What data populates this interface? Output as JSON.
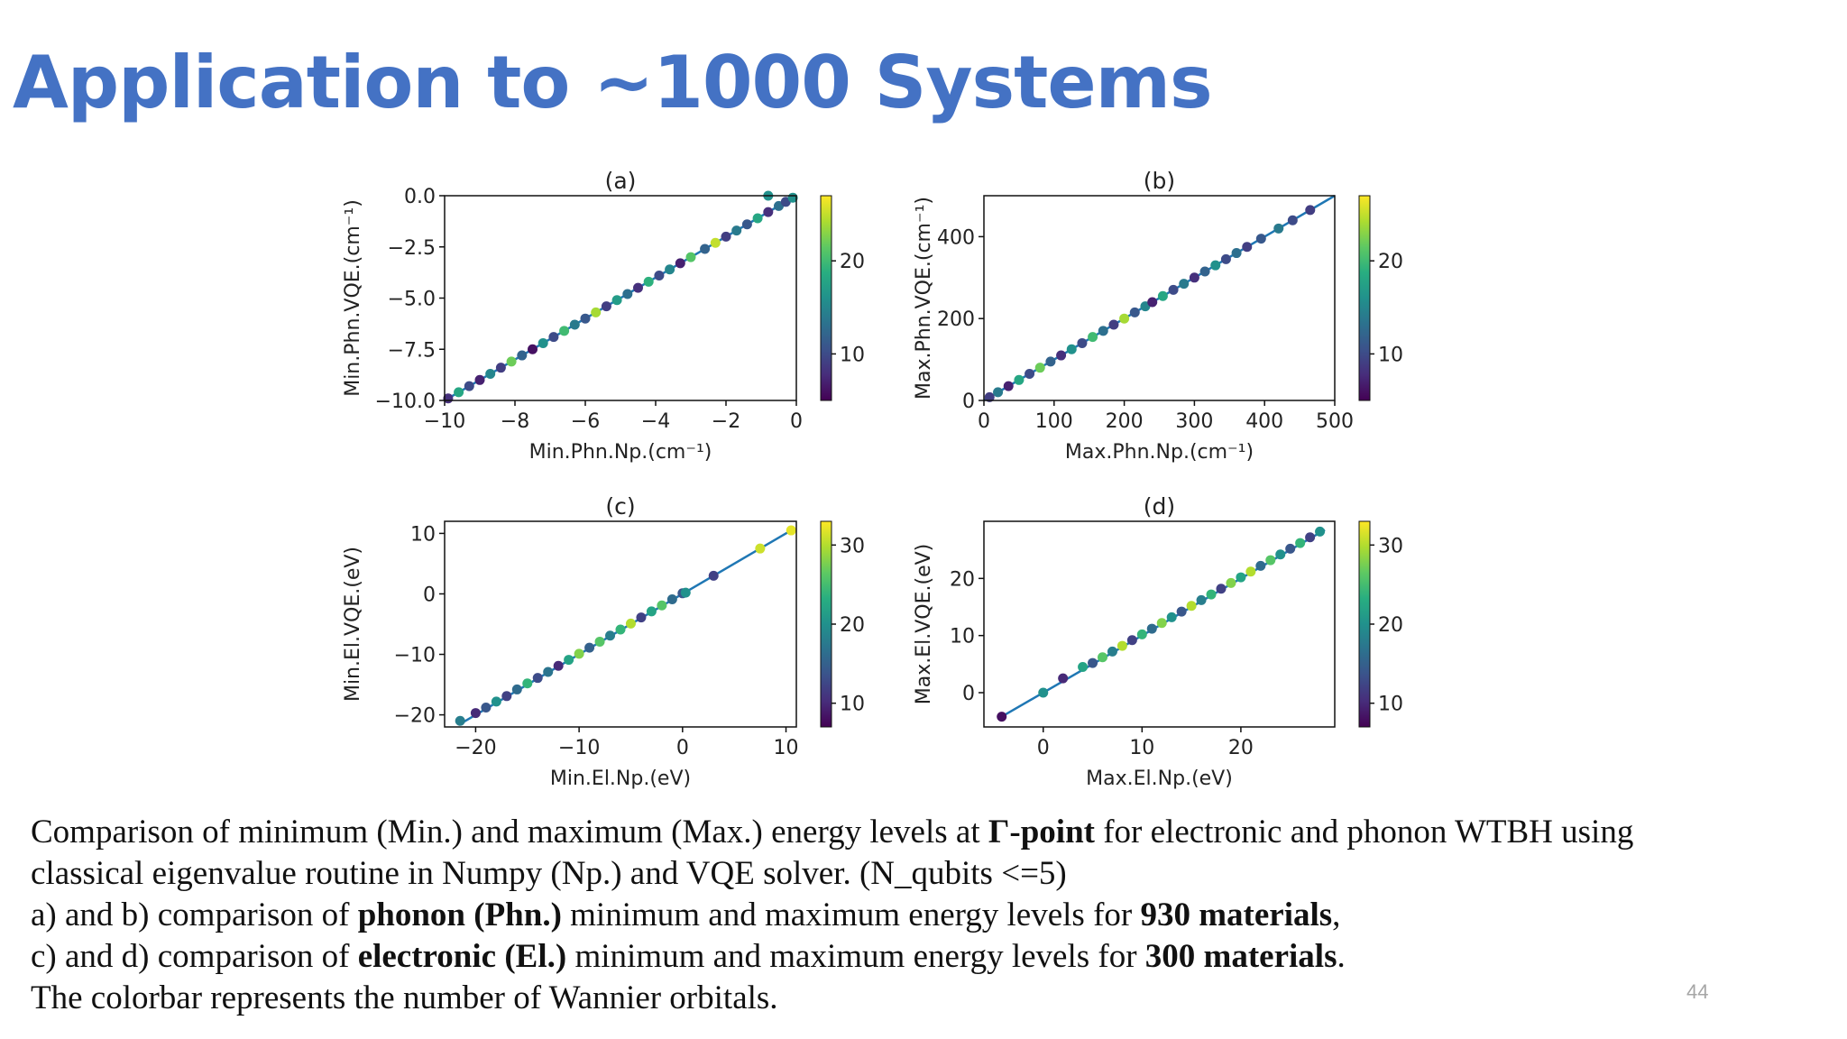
{
  "slide": {
    "title": "Application to ~1000 Systems",
    "page_number": "44",
    "caption": {
      "line1": [
        {
          "text": "Comparison of minimum (Min.) and maximum (Max.) energy levels at ",
          "bold": false
        },
        {
          "text": "Γ-point",
          "bold": true
        },
        {
          "text": " for electronic and phonon WTBH using",
          "bold": false
        }
      ],
      "line2": [
        {
          "text": "classical eigenvalue routine in Numpy (Np.) and VQE solver. (N_qubits <=5)",
          "bold": false
        }
      ],
      "line3": [
        {
          "text": "a)   and b) comparison of ",
          "bold": false
        },
        {
          "text": "phonon (Phn.)",
          "bold": true
        },
        {
          "text": " minimum and maximum energy levels for ",
          "bold": false
        },
        {
          "text": "930 materials",
          "bold": true
        },
        {
          "text": ",",
          "bold": false
        }
      ],
      "line4": [
        {
          "text": "c) and d) comparison of ",
          "bold": false
        },
        {
          "text": "electronic (El.)",
          "bold": true
        },
        {
          "text": " minimum and maximum energy levels for ",
          "bold": false
        },
        {
          "text": "300 materials",
          "bold": true
        },
        {
          "text": ".",
          "bold": false
        }
      ],
      "line5": [
        {
          "text": "The colorbar represents the number of Wannier orbitals.",
          "bold": false
        }
      ]
    }
  },
  "chart_data": [
    {
      "type": "scatter",
      "title": "(a)",
      "xlabel": "Min.Phn.Np.(cm⁻¹)",
      "ylabel": "Min.Phn.VQE.(cm⁻¹)",
      "xlim": [
        -10,
        0
      ],
      "ylim": [
        -10,
        0
      ],
      "xticks": [
        -10,
        -8,
        -6,
        -4,
        -2,
        0
      ],
      "xticklabels": [
        "−10",
        "−8",
        "−6",
        "−4",
        "−2",
        "0"
      ],
      "yticks": [
        0,
        -2.5,
        -5,
        -7.5,
        -10
      ],
      "yticklabels": [
        "0.0",
        "−2.5",
        "−5.0",
        "−7.5",
        "−10.0"
      ],
      "diagonal": [
        -10,
        0
      ],
      "colorbar": {
        "range": [
          5,
          27
        ],
        "ticks": [
          10,
          20
        ],
        "ticklabels": [
          "10",
          "20"
        ],
        "cmap": "viridis"
      },
      "points": [
        [
          -9.9,
          -9.9,
          8
        ],
        [
          -9.6,
          -9.6,
          18
        ],
        [
          -9.3,
          -9.3,
          10
        ],
        [
          -9.0,
          -9.0,
          7
        ],
        [
          -8.7,
          -8.7,
          15
        ],
        [
          -8.4,
          -8.4,
          9
        ],
        [
          -8.1,
          -8.1,
          22
        ],
        [
          -7.8,
          -7.8,
          12
        ],
        [
          -7.5,
          -7.5,
          6
        ],
        [
          -7.2,
          -7.2,
          16
        ],
        [
          -6.9,
          -6.9,
          10
        ],
        [
          -6.6,
          -6.6,
          20
        ],
        [
          -6.3,
          -6.3,
          14
        ],
        [
          -6.0,
          -6.0,
          11
        ],
        [
          -5.7,
          -5.7,
          24
        ],
        [
          -5.4,
          -5.4,
          9
        ],
        [
          -5.1,
          -5.1,
          17
        ],
        [
          -4.8,
          -4.8,
          13
        ],
        [
          -4.5,
          -4.5,
          8
        ],
        [
          -4.2,
          -4.2,
          19
        ],
        [
          -3.9,
          -3.9,
          10
        ],
        [
          -3.6,
          -3.6,
          15
        ],
        [
          -3.3,
          -3.3,
          7
        ],
        [
          -3.0,
          -3.0,
          21
        ],
        [
          -2.6,
          -2.6,
          12
        ],
        [
          -2.3,
          -2.3,
          25
        ],
        [
          -2.0,
          -2.0,
          9
        ],
        [
          -1.7,
          -1.7,
          14
        ],
        [
          -1.4,
          -1.4,
          11
        ],
        [
          -1.1,
          -1.1,
          18
        ],
        [
          -0.8,
          -0.8,
          8
        ],
        [
          -0.5,
          -0.5,
          13
        ],
        [
          -0.3,
          -0.3,
          10
        ],
        [
          -0.1,
          -0.1,
          16
        ],
        [
          -0.8,
          0.0,
          16
        ]
      ]
    },
    {
      "type": "scatter",
      "title": "(b)",
      "xlabel": "Max.Phn.Np.(cm⁻¹)",
      "ylabel": "Max.Phn.VQE.(cm⁻¹)",
      "xlim": [
        0,
        500
      ],
      "ylim": [
        0,
        500
      ],
      "xticks": [
        0,
        100,
        200,
        300,
        400,
        500
      ],
      "xticklabels": [
        "0",
        "100",
        "200",
        "300",
        "400",
        "500"
      ],
      "yticks": [
        0,
        200,
        400
      ],
      "yticklabels": [
        "0",
        "200",
        "400"
      ],
      "diagonal": [
        0,
        500
      ],
      "colorbar": {
        "range": [
          5,
          27
        ],
        "ticks": [
          10,
          20
        ],
        "ticklabels": [
          "10",
          "20"
        ],
        "cmap": "viridis"
      },
      "points": [
        [
          8,
          8,
          9
        ],
        [
          20,
          20,
          14
        ],
        [
          35,
          35,
          7
        ],
        [
          50,
          50,
          18
        ],
        [
          65,
          65,
          10
        ],
        [
          80,
          80,
          22
        ],
        [
          95,
          95,
          12
        ],
        [
          110,
          110,
          8
        ],
        [
          125,
          125,
          16
        ],
        [
          140,
          140,
          10
        ],
        [
          155,
          155,
          20
        ],
        [
          170,
          170,
          13
        ],
        [
          185,
          185,
          9
        ],
        [
          200,
          200,
          24
        ],
        [
          215,
          215,
          11
        ],
        [
          230,
          230,
          15
        ],
        [
          240,
          240,
          7
        ],
        [
          255,
          255,
          18
        ],
        [
          270,
          270,
          10
        ],
        [
          285,
          285,
          14
        ],
        [
          300,
          300,
          8
        ],
        [
          315,
          315,
          12
        ],
        [
          330,
          330,
          16
        ],
        [
          345,
          345,
          10
        ],
        [
          360,
          360,
          13
        ],
        [
          375,
          375,
          9
        ],
        [
          395,
          395,
          11
        ],
        [
          420,
          420,
          14
        ],
        [
          440,
          440,
          10
        ],
        [
          465,
          465,
          9
        ]
      ]
    },
    {
      "type": "scatter",
      "title": "(c)",
      "xlabel": "Min.El.Np.(eV)",
      "ylabel": "Min.El.VQE.(eV)",
      "xlim": [
        -23,
        11
      ],
      "ylim": [
        -22,
        12
      ],
      "xticks": [
        -20,
        -10,
        0,
        10
      ],
      "xticklabels": [
        "−20",
        "−10",
        "0",
        "10"
      ],
      "yticks": [
        10,
        0,
        -10,
        -20
      ],
      "yticklabels": [
        "10",
        "0",
        "−10",
        "−20"
      ],
      "diagonal": [
        -21.5,
        10.5
      ],
      "colorbar": {
        "range": [
          7,
          33
        ],
        "ticks": [
          10,
          20,
          30
        ],
        "ticklabels": [
          "10",
          "20",
          "30"
        ],
        "cmap": "viridis"
      },
      "points": [
        [
          -21.5,
          -21,
          18
        ],
        [
          -20,
          -19.7,
          10
        ],
        [
          -19,
          -18.8,
          14
        ],
        [
          -18,
          -17.8,
          20
        ],
        [
          -17,
          -16.9,
          12
        ],
        [
          -16,
          -15.8,
          16
        ],
        [
          -15,
          -14.8,
          24
        ],
        [
          -14,
          -13.9,
          13
        ],
        [
          -13,
          -12.9,
          17
        ],
        [
          -12,
          -11.9,
          10
        ],
        [
          -11,
          -10.9,
          22
        ],
        [
          -10,
          -9.9,
          28
        ],
        [
          -9,
          -8.9,
          15
        ],
        [
          -8,
          -7.9,
          26
        ],
        [
          -7,
          -6.9,
          18
        ],
        [
          -6,
          -5.9,
          24
        ],
        [
          -5,
          -4.9,
          30
        ],
        [
          -4,
          -3.9,
          12
        ],
        [
          -3,
          -2.9,
          22
        ],
        [
          -2,
          -1.9,
          26
        ],
        [
          -1,
          -0.9,
          16
        ],
        [
          0,
          0.1,
          14
        ],
        [
          0.3,
          0.2,
          20
        ],
        [
          3,
          3,
          12
        ],
        [
          7.5,
          7.5,
          31
        ],
        [
          10.5,
          10.5,
          32
        ]
      ]
    },
    {
      "type": "scatter",
      "title": "(d)",
      "xlabel": "Max.El.Np.(eV)",
      "ylabel": "Max.El.VQE.(eV)",
      "xlim": [
        -6,
        29.5
      ],
      "ylim": [
        -6,
        30
      ],
      "xticks": [
        0,
        10,
        20
      ],
      "xticklabels": [
        "0",
        "10",
        "20"
      ],
      "yticks": [
        0,
        10,
        20
      ],
      "yticklabels": [
        "0",
        "10",
        "20"
      ],
      "diagonal": [
        -4.2,
        28.5
      ],
      "colorbar": {
        "range": [
          7,
          33
        ],
        "ticks": [
          10,
          20,
          30
        ],
        "ticklabels": [
          "10",
          "20",
          "30"
        ],
        "cmap": "viridis"
      },
      "points": [
        [
          -4.2,
          -4.2,
          8
        ],
        [
          0,
          0,
          20
        ],
        [
          2,
          2.5,
          10
        ],
        [
          4,
          4.5,
          22
        ],
        [
          5,
          5.2,
          14
        ],
        [
          6,
          6.2,
          26
        ],
        [
          7,
          7.2,
          18
        ],
        [
          8,
          8.2,
          30
        ],
        [
          9,
          9.2,
          12
        ],
        [
          10,
          10.2,
          24
        ],
        [
          11,
          11.2,
          16
        ],
        [
          12,
          12.2,
          28
        ],
        [
          13,
          13.2,
          20
        ],
        [
          14,
          14.2,
          14
        ],
        [
          15,
          15.2,
          30
        ],
        [
          16,
          16.2,
          18
        ],
        [
          17,
          17.2,
          24
        ],
        [
          18,
          18.2,
          12
        ],
        [
          19,
          19.2,
          28
        ],
        [
          20,
          20.2,
          22
        ],
        [
          21,
          21.2,
          30
        ],
        [
          22,
          22.2,
          16
        ],
        [
          23,
          23.2,
          26
        ],
        [
          24,
          24.2,
          20
        ],
        [
          25,
          25.2,
          14
        ],
        [
          26,
          26.2,
          24
        ],
        [
          27,
          27.2,
          12
        ],
        [
          28,
          28.2,
          20
        ]
      ]
    }
  ]
}
